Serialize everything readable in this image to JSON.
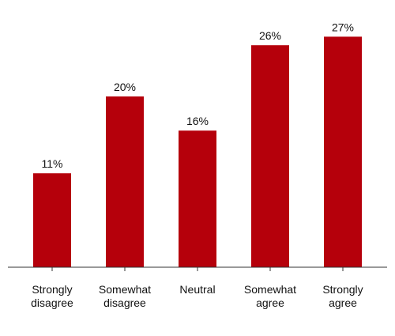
{
  "chart_data": {
    "type": "bar",
    "title": "",
    "xlabel": "",
    "ylabel": "",
    "categories": [
      [
        "Strongly",
        "disagree"
      ],
      [
        "Somewhat",
        "disagree"
      ],
      [
        "Neutral"
      ],
      [
        "Somewhat",
        "agree"
      ],
      [
        "Strongly",
        "agree"
      ]
    ],
    "values": [
      11,
      20,
      16,
      26,
      27
    ],
    "value_labels": [
      "11%",
      "20%",
      "16%",
      "26%",
      "27%"
    ],
    "ylim": [
      0,
      30
    ],
    "grid": false,
    "legend": "none",
    "colors": {
      "bar": "#b5000b",
      "axis": "#333333",
      "text": "#111111"
    }
  }
}
